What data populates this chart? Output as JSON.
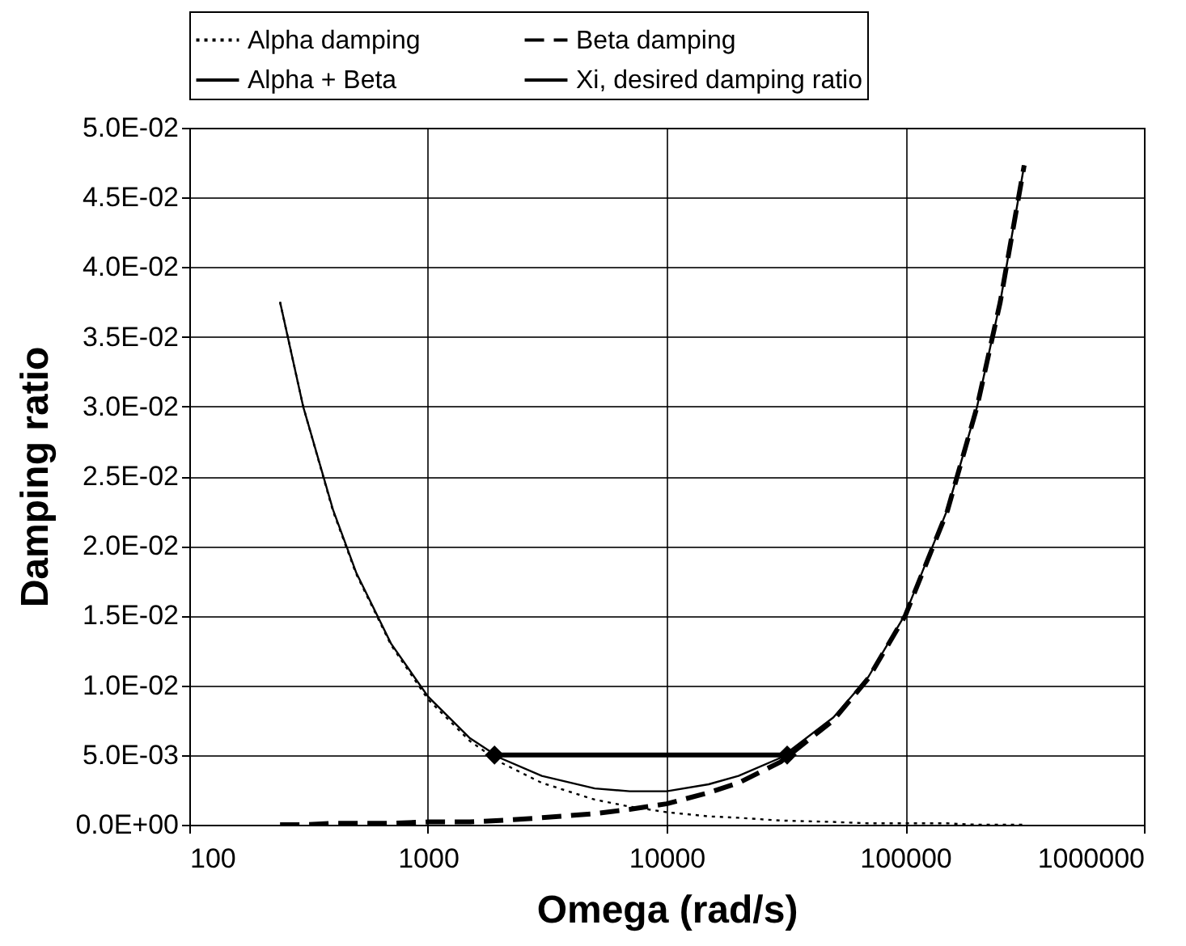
{
  "chart_data": {
    "type": "line",
    "xlabel": "Omega (rad/s)",
    "ylabel": "Damping ratio",
    "log": "x",
    "grid": true,
    "legend": "top",
    "xlim": [
      100,
      1000000
    ],
    "xticks": [
      100,
      1000,
      10000,
      100000,
      1000000
    ],
    "ylim": [
      0,
      0.05
    ],
    "yticks": [
      {
        "value": 0,
        "label": "0.0E+00"
      },
      {
        "value": 0.005,
        "label": "5.0E-03"
      },
      {
        "value": 0.01,
        "label": "1.0E-02"
      },
      {
        "value": 0.015,
        "label": "1.5E-02"
      },
      {
        "value": 0.02,
        "label": "2.0E-02"
      },
      {
        "value": 0.025,
        "label": "2.5E-02"
      },
      {
        "value": 0.03,
        "label": "3.0E-02"
      },
      {
        "value": 0.035,
        "label": "3.5E-02"
      },
      {
        "value": 0.04,
        "label": "4.0E-02"
      },
      {
        "value": 0.045,
        "label": "4.5E-02"
      },
      {
        "value": 0.05,
        "label": "5.0E-02"
      }
    ],
    "x": [
      240,
      300,
      400,
      500,
      700,
      1000,
      1500,
      2000,
      3000,
      5000,
      7000,
      10000,
      15000,
      20000,
      30000,
      50000,
      70000,
      100000,
      150000,
      200000,
      250000,
      315000
    ],
    "series": [
      {
        "name": "Alpha damping",
        "color": "#000000",
        "line_style": "dotted",
        "marker": "none",
        "values": [
          0.0375,
          0.03,
          0.0225,
          0.018,
          0.0129,
          0.009,
          0.006,
          0.0045,
          0.003,
          0.0018,
          0.0013,
          0.0009,
          0.0006,
          0.0005,
          0.0003,
          0.0002,
          0.0001,
          0.0001,
          0.0001,
          0,
          0,
          0
        ]
      },
      {
        "name": "Beta damping",
        "color": "#000000",
        "line_style": "dashed",
        "marker": "none",
        "values": [
          0,
          0,
          0.0001,
          0.0001,
          0.0001,
          0.0002,
          0.0002,
          0.0003,
          0.0005,
          0.0008,
          0.0011,
          0.0015,
          0.0023,
          0.003,
          0.0045,
          0.0075,
          0.0105,
          0.015,
          0.0225,
          0.03,
          0.0375,
          0.0473
        ]
      },
      {
        "name": "Alpha + Beta",
        "color": "#000000",
        "line_style": "solid",
        "marker": "none",
        "values": [
          0.0375,
          0.03,
          0.0226,
          0.0181,
          0.013,
          0.0092,
          0.0062,
          0.0048,
          0.0035,
          0.0026,
          0.0024,
          0.0024,
          0.0029,
          0.0035,
          0.0048,
          0.0077,
          0.0106,
          0.0151,
          0.0226,
          0.03,
          0.0375,
          0.0473
        ]
      },
      {
        "name": "Xi, desired damping ratio",
        "color": "#000000",
        "line_style": "solid",
        "marker": "diamond",
        "x": [
          1900,
          32000
        ],
        "values": [
          0.005,
          0.005
        ]
      }
    ]
  }
}
